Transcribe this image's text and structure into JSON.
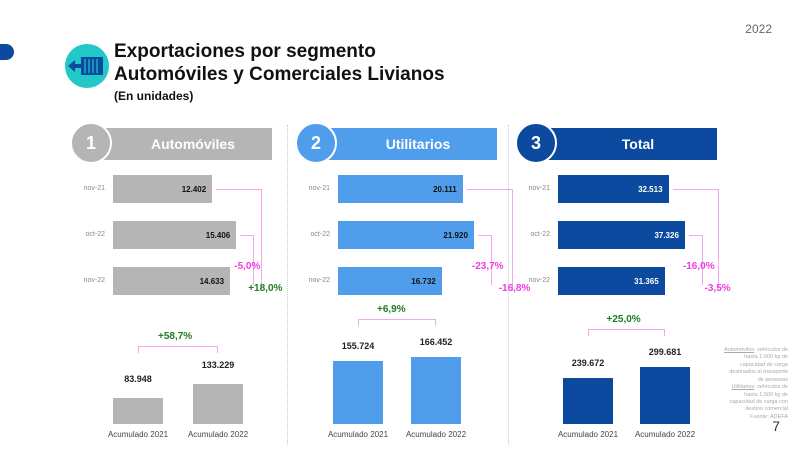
{
  "year": "2022",
  "title_line1": "Exportaciones por segmento",
  "title_line2": "Automóviles y Comerciales Livianos",
  "subtitle": "(En unidades)",
  "page_number": "7",
  "footnote": {
    "auto_term": "Automóviles",
    "auto_def": ": vehículos de hasta 1.500 kg de capacidad de carga destinados al transporte de personas",
    "util_term": "Utilitarios",
    "util_def": ": vehículos de hasta 1.500 kg de capacidad de carga con destino comercial",
    "source": "Fuente: ADEFA"
  },
  "colors": {
    "automoviles": "#b5b5b5",
    "utilitarios": "#4f9deb",
    "total": "#0b4a9e",
    "negative": "#f03ce6",
    "positive": "#1e7d1e"
  },
  "panels": [
    {
      "number": "1",
      "label": "Automóviles",
      "color": "#b5b5b5",
      "rows": [
        {
          "period": "nov-21",
          "value": 12402,
          "display": "12.402"
        },
        {
          "period": "oct-22",
          "value": 15406,
          "display": "15.406"
        },
        {
          "period": "nov-22",
          "value": 14633,
          "display": "14.633"
        }
      ],
      "monthly_change": "-5,0%",
      "yearly_change": "+18,0%",
      "yearly_positive": true,
      "accum": [
        {
          "label": "Acumulado 2021",
          "value": 83948,
          "display": "83.948"
        },
        {
          "label": "Acumulado 2022",
          "value": 133229,
          "display": "133.229"
        }
      ],
      "accum_change": "+58,7%"
    },
    {
      "number": "2",
      "label": "Utilitarios",
      "color": "#4f9deb",
      "rows": [
        {
          "period": "nov-21",
          "value": 20111,
          "display": "20.111"
        },
        {
          "period": "oct-22",
          "value": 21920,
          "display": "21.920"
        },
        {
          "period": "nov-22",
          "value": 16732,
          "display": "16.732"
        }
      ],
      "monthly_change": "-23,7%",
      "yearly_change": "-16,8%",
      "yearly_positive": false,
      "accum": [
        {
          "label": "Acumulado 2021",
          "value": 155724,
          "display": "155.724"
        },
        {
          "label": "Acumulado 2022",
          "value": 166452,
          "display": "166.452"
        }
      ],
      "accum_change": "+6,9%"
    },
    {
      "number": "3",
      "label": "Total",
      "color": "#0b4a9e",
      "rows": [
        {
          "period": "nov-21",
          "value": 32513,
          "display": "32.513"
        },
        {
          "period": "oct-22",
          "value": 37326,
          "display": "37.326"
        },
        {
          "period": "nov-22",
          "value": 31365,
          "display": "31.365"
        }
      ],
      "monthly_change": "-16,0%",
      "yearly_change": "-3,5%",
      "yearly_positive": false,
      "accum": [
        {
          "label": "Acumulado 2021",
          "value": 239672,
          "display": "239.672"
        },
        {
          "label": "Acumulado 2022",
          "value": 299681,
          "display": "299.681"
        }
      ],
      "accum_change": "+25,0%"
    }
  ]
}
